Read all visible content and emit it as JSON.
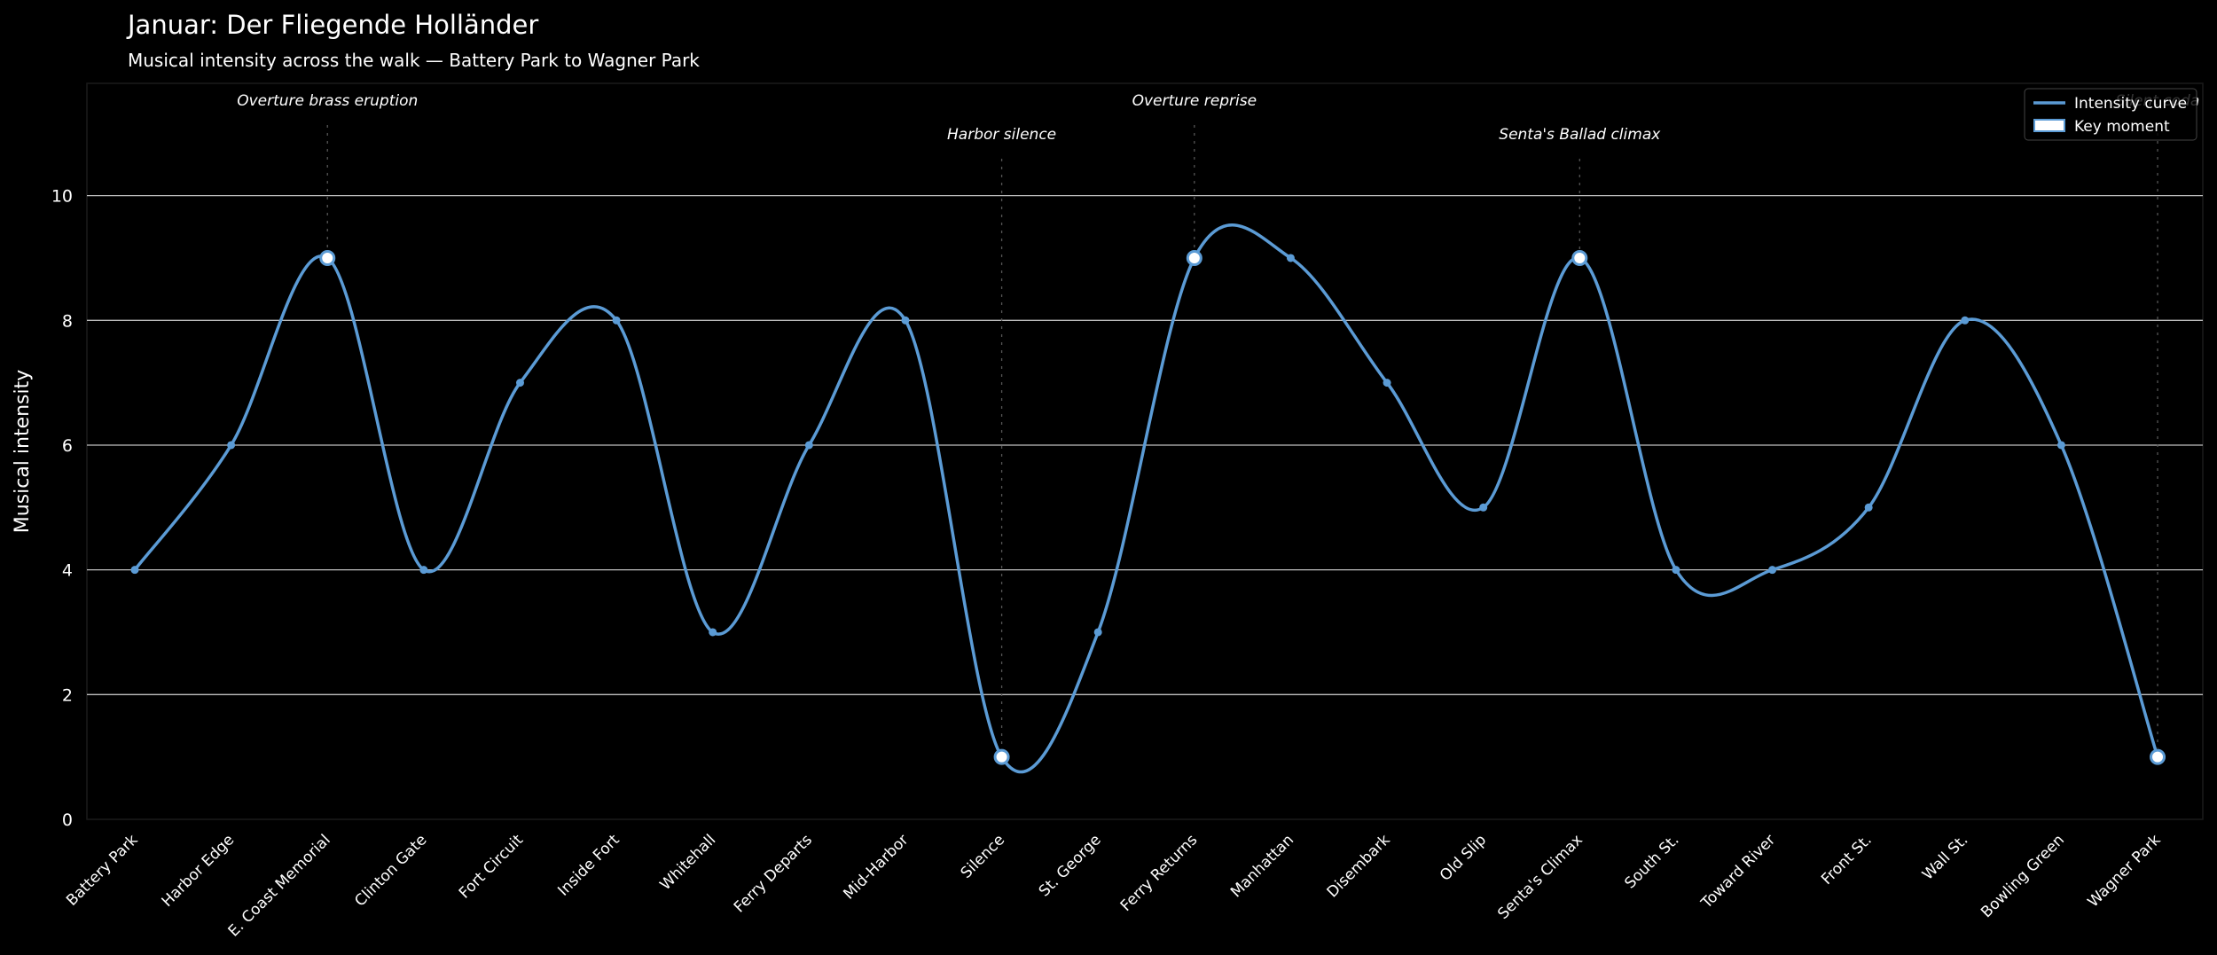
{
  "chart_data": {
    "type": "line",
    "title": "Januar: Der Fliegende Holländer",
    "subtitle": "Musical intensity across the walk — Battery Park to Wagner Park",
    "xlabel": "",
    "ylabel": "Musical intensity",
    "ylim": [
      0,
      11.8
    ],
    "yticks": [
      0,
      2,
      4,
      6,
      8,
      10
    ],
    "grid": "horizontal",
    "legend_placement": "top-right",
    "categories": [
      "Battery Park",
      "Harbor Edge",
      "E. Coast Memorial",
      "Clinton Gate",
      "Fort Circuit",
      "Inside Fort",
      "Whitehall",
      "Ferry Departs",
      "Mid-Harbor",
      "Silence",
      "St. George",
      "Ferry Returns",
      "Manhattan",
      "Disembark",
      "Old Slip",
      "Senta's Climax",
      "South St.",
      "Toward River",
      "Front St.",
      "Wall St.",
      "Bowling Green",
      "Wagner Park"
    ],
    "series": [
      {
        "name": "Intensity curve",
        "values": [
          4,
          6,
          9,
          4,
          7,
          8,
          3,
          6,
          8,
          1,
          3,
          9,
          9,
          7,
          5,
          9,
          4,
          4,
          5,
          8,
          6,
          1
        ],
        "color": "#5b9bd5"
      }
    ],
    "key_moments": [
      {
        "index": 2,
        "label": "Overture brass eruption",
        "level": 1
      },
      {
        "index": 9,
        "label": "Harbor silence",
        "level": 2
      },
      {
        "index": 11,
        "label": "Overture reprise",
        "level": 1
      },
      {
        "index": 15,
        "label": "Senta's Ballad climax",
        "level": 2
      },
      {
        "index": 21,
        "label": "Silent coda",
        "level": 1
      }
    ],
    "legend": {
      "curve": "Intensity curve",
      "marker": "Key moment"
    }
  },
  "colors": {
    "background": "#000000",
    "line": "#5b9bd5",
    "grid": "#bfbfbf",
    "text": "#ffffff"
  }
}
